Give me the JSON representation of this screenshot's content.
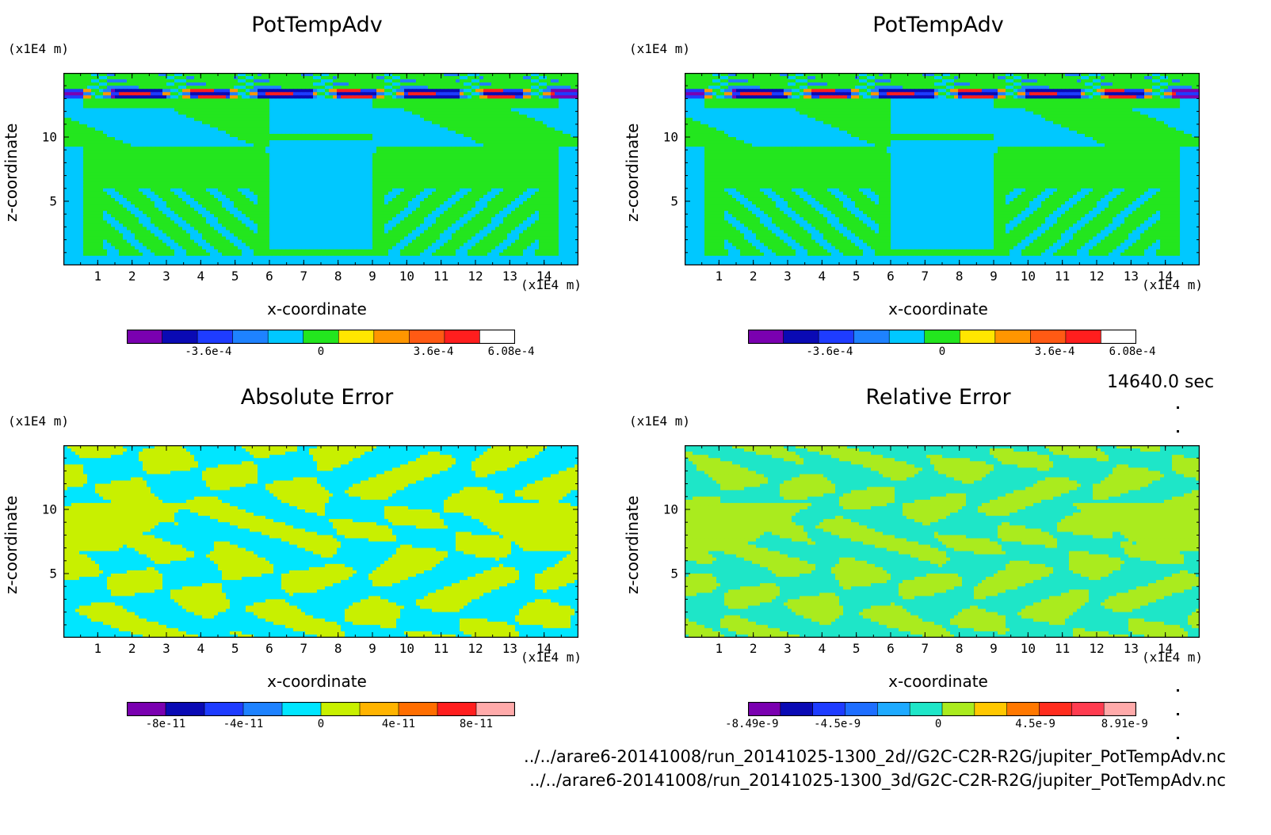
{
  "figure": {
    "time_label": "14640.0 sec",
    "files": [
      "../../arare6-20141008/run_20141025-1300_2d//G2C-C2R-R2G/jupiter_PotTempAdv.nc",
      "../../arare6-20141008/run_20141025-1300_3d/G2C-C2R-R2G/jupiter_PotTempAdv.nc"
    ]
  },
  "chart_data": [
    {
      "type": "heatmap",
      "title": "PotTempAdv",
      "xlabel": "x-coordinate",
      "ylabel": "z-coordinate",
      "x_unit": "(x1E4 m)",
      "y_unit": "(x1E4 m)",
      "xlim": [
        0,
        15
      ],
      "ylim": [
        0,
        15
      ],
      "xticks": [
        "1",
        "2",
        "3",
        "4",
        "5",
        "6",
        "7",
        "8",
        "9",
        "10",
        "11",
        "12",
        "13",
        "14"
      ],
      "yticks": [
        "5",
        "10"
      ],
      "colorbar": {
        "colors": [
          "#7a00b0",
          "#0a0ab4",
          "#1e3cff",
          "#1e82ff",
          "#00c8ff",
          "#23e61e",
          "#ffe600",
          "#ff9600",
          "#ff5a14",
          "#ff1e1e",
          "#ffffff"
        ],
        "ticks": [
          "-3.6e-4",
          "0",
          "3.6e-4",
          "6.08e-4"
        ],
        "tick_positions": [
          0.21,
          0.5,
          0.79,
          0.99
        ]
      },
      "field": "potemp-a"
    },
    {
      "type": "heatmap",
      "title": "PotTempAdv",
      "xlabel": "x-coordinate",
      "ylabel": "z-coordinate",
      "x_unit": "(x1E4 m)",
      "y_unit": "(x1E4 m)",
      "xlim": [
        0,
        15
      ],
      "ylim": [
        0,
        15
      ],
      "xticks": [
        "1",
        "2",
        "3",
        "4",
        "5",
        "6",
        "7",
        "8",
        "9",
        "10",
        "11",
        "12",
        "13",
        "14"
      ],
      "yticks": [
        "5",
        "10"
      ],
      "colorbar": {
        "colors": [
          "#7a00b0",
          "#0a0ab4",
          "#1e3cff",
          "#1e82ff",
          "#00c8ff",
          "#23e61e",
          "#ffe600",
          "#ff9600",
          "#ff5a14",
          "#ff1e1e",
          "#ffffff"
        ],
        "ticks": [
          "-3.6e-4",
          "0",
          "3.6e-4",
          "6.08e-4"
        ],
        "tick_positions": [
          0.21,
          0.5,
          0.79,
          0.99
        ]
      },
      "field": "potemp-b"
    },
    {
      "type": "heatmap",
      "title": "Absolute Error",
      "xlabel": "x-coordinate",
      "ylabel": "z-coordinate",
      "x_unit": "(x1E4 m)",
      "y_unit": "(x1E4 m)",
      "xlim": [
        0,
        15
      ],
      "ylim": [
        0,
        15
      ],
      "xticks": [
        "1",
        "2",
        "3",
        "4",
        "5",
        "6",
        "7",
        "8",
        "9",
        "10",
        "11",
        "12",
        "13",
        "14"
      ],
      "yticks": [
        "5",
        "10"
      ],
      "colorbar": {
        "colors": [
          "#7a00b0",
          "#0a0ab4",
          "#1e3cff",
          "#1e82ff",
          "#00e6ff",
          "#c8f000",
          "#ffb400",
          "#ff6e00",
          "#ff1e1e",
          "#ffaaaa"
        ],
        "ticks": [
          "-8e-11",
          "-4e-11",
          "0",
          "4e-11",
          "8e-11"
        ],
        "tick_positions": [
          0.1,
          0.3,
          0.5,
          0.7,
          0.9
        ]
      },
      "field": "abs"
    },
    {
      "type": "heatmap",
      "title": "Relative Error",
      "xlabel": "x-coordinate",
      "ylabel": "z-coordinate",
      "x_unit": "(x1E4 m)",
      "y_unit": "(x1E4 m)",
      "xlim": [
        0,
        15
      ],
      "ylim": [
        0,
        15
      ],
      "xticks": [
        "1",
        "2",
        "3",
        "4",
        "5",
        "6",
        "7",
        "8",
        "9",
        "10",
        "11",
        "12",
        "13",
        "14"
      ],
      "yticks": [
        "5",
        "10"
      ],
      "colorbar": {
        "colors": [
          "#7a00b0",
          "#0a0ab4",
          "#1e3cff",
          "#1e6eff",
          "#1eaaff",
          "#1ee6c8",
          "#aaeb1e",
          "#ffc800",
          "#ff7800",
          "#ff2d1e",
          "#ff3c50",
          "#ffaaaa"
        ],
        "ticks": [
          "-8.49e-9",
          "-4.5e-9",
          "0",
          "4.5e-9",
          "8.91e-9"
        ],
        "tick_positions": [
          0.01,
          0.23,
          0.49,
          0.74,
          0.97
        ]
      },
      "field": "rel"
    }
  ]
}
